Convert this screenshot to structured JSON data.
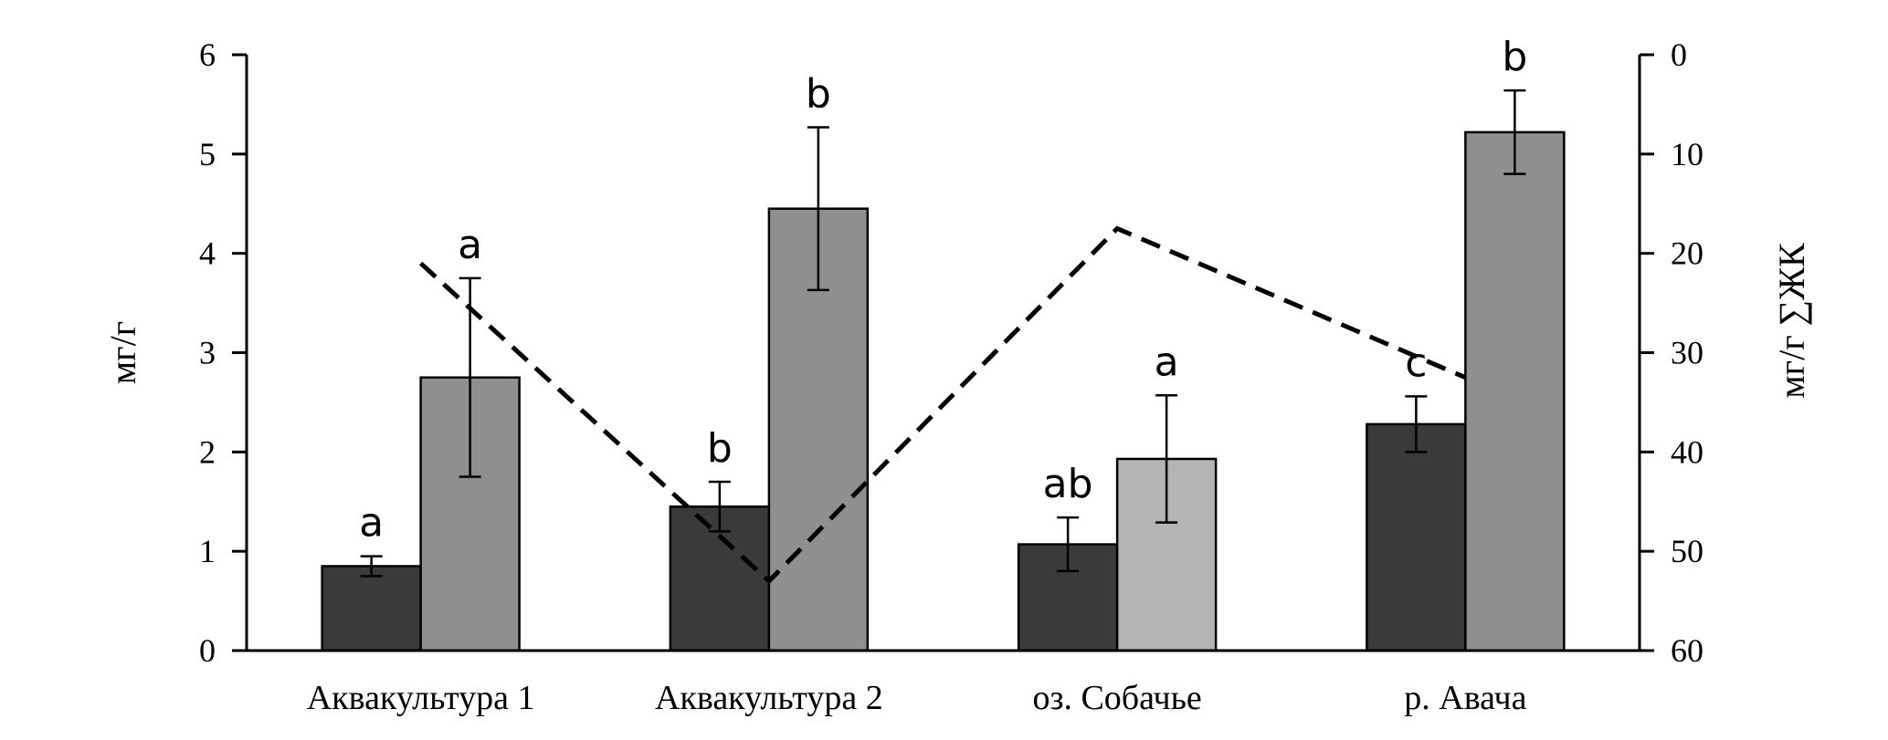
{
  "chart_data": {
    "type": "bar",
    "categories": [
      "Аквакультура 1",
      "Аквакультура 2",
      "оз. Собачье",
      "р. Авача"
    ],
    "series": [
      {
        "values": [
          0.85,
          1.45,
          1.07,
          2.28
        ],
        "errors": [
          0.1,
          0.25,
          0.27,
          0.28
        ],
        "labels": [
          "a",
          "b",
          "ab",
          "c"
        ],
        "color": "#3a3a3a"
      },
      {
        "values": [
          2.75,
          4.45,
          1.93,
          5.22
        ],
        "errors": [
          1.0,
          0.82,
          0.64,
          0.42
        ],
        "labels": [
          "a",
          "b",
          "a",
          "b"
        ],
        "colors": [
          "#8f8f8f",
          "#8f8f8f",
          "#b4b4b4",
          "#8f8f8f"
        ]
      }
    ],
    "line": {
      "axis": "right",
      "style": "dashed",
      "values": [
        21,
        53,
        17.5,
        32.5
      ]
    },
    "ylabel": "мг/г",
    "ylim": [
      0,
      6
    ],
    "yticks": [
      "0",
      "1",
      "2",
      "3",
      "4",
      "5",
      "6"
    ],
    "y2label": "мг/г ∑ЖК",
    "y2lim": [
      0,
      60
    ],
    "y2_inverted": true,
    "y2ticks": [
      "0",
      "10",
      "20",
      "30",
      "40",
      "50",
      "60"
    ],
    "grid": false,
    "legend": "none"
  }
}
